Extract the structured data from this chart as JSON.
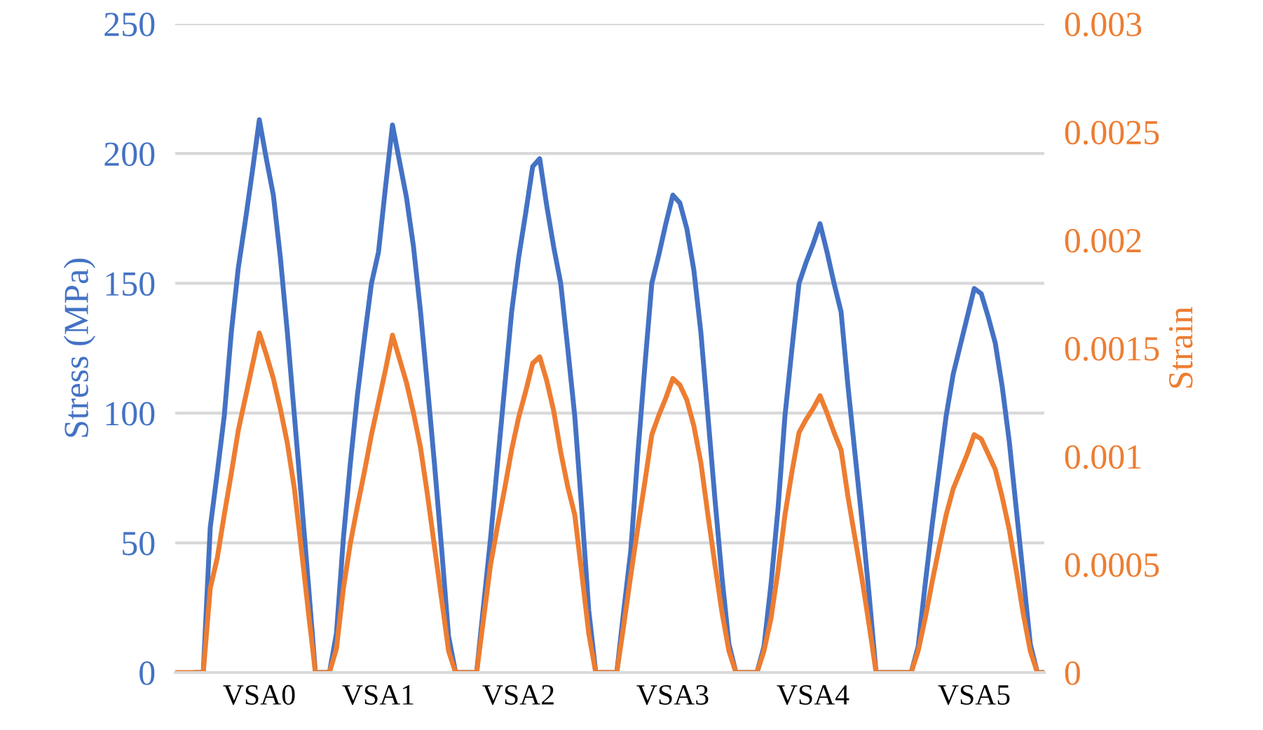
{
  "chart_data": {
    "type": "line",
    "ylabel": "Stress (MPa)",
    "y2label": "Strain",
    "categories": [
      null,
      null,
      null,
      null,
      null,
      null,
      null,
      null,
      null,
      null,
      null,
      null,
      "VSA0",
      null,
      null,
      null,
      null,
      null,
      null,
      null,
      null,
      null,
      null,
      null,
      null,
      null,
      null,
      null,
      null,
      "VSA1",
      null,
      null,
      null,
      null,
      null,
      null,
      null,
      null,
      null,
      null,
      null,
      null,
      null,
      null,
      null,
      null,
      null,
      null,
      null,
      "VSA2",
      null,
      null,
      null,
      null,
      null,
      null,
      null,
      null,
      null,
      null,
      null,
      null,
      null,
      null,
      null,
      null,
      null,
      null,
      null,
      null,
      null,
      "VSA3",
      null,
      null,
      null,
      null,
      null,
      null,
      null,
      null,
      null,
      null,
      null,
      null,
      null,
      null,
      null,
      null,
      null,
      null,
      null,
      "VSA4",
      null,
      null,
      null,
      null,
      null,
      null,
      null,
      null,
      null,
      null,
      null,
      null,
      null,
      null,
      null,
      null,
      null,
      null,
      null,
      null,
      null,
      null,
      "VSA5",
      null,
      null,
      null,
      null,
      null,
      null,
      null,
      null,
      null,
      null
    ],
    "series": [
      {
        "color": "#4472c4",
        "values": [
          null,
          null,
          null,
          0,
          0,
          56,
          77,
          99,
          131,
          156,
          174,
          193,
          213,
          198,
          184,
          160,
          131,
          99,
          67,
          34,
          0,
          0,
          0,
          15,
          52,
          81,
          107,
          129,
          150,
          162,
          187,
          211,
          197,
          183,
          164,
          139,
          110,
          80,
          48,
          14,
          0,
          0,
          0,
          0,
          26,
          52,
          81,
          110,
          139,
          160,
          177,
          195,
          198,
          180,
          164,
          150,
          125,
          99,
          63,
          24,
          0,
          0,
          0,
          0,
          24,
          47,
          84,
          118,
          150,
          161,
          173,
          184,
          181,
          171,
          155,
          131,
          99,
          67,
          37,
          11,
          0,
          0,
          0,
          0,
          10,
          34,
          63,
          99,
          125,
          150,
          158,
          165,
          173,
          162,
          150,
          139,
          110,
          84,
          58,
          30,
          0,
          0,
          0,
          0,
          0,
          0,
          10,
          34,
          57,
          78,
          99,
          115,
          126,
          137,
          148,
          146,
          137,
          127,
          110,
          89,
          63,
          37,
          11,
          0,
          0
        ]
      },
      {
        "color": "#ed7d31",
        "axis": "y2",
        "values": [
          0,
          0,
          0,
          0,
          0,
          0.00039,
          0.00053,
          0.00073,
          0.00092,
          0.00112,
          0.00127,
          0.00142,
          0.00157,
          0.00147,
          0.00136,
          0.00122,
          0.00106,
          0.00085,
          0.00057,
          0.00028,
          0,
          0,
          0,
          0.00011,
          0.00039,
          0.0006,
          0.00077,
          0.00093,
          0.0011,
          0.00125,
          0.0014,
          0.00156,
          0.00145,
          0.00134,
          0.0012,
          0.00104,
          0.00082,
          0.00058,
          0.00034,
          0.0001,
          0,
          0,
          0,
          0,
          0.00025,
          0.0005,
          0.00068,
          0.00085,
          0.00103,
          0.00118,
          0.0013,
          0.00143,
          0.00146,
          0.00135,
          0.00121,
          0.00102,
          0.00086,
          0.00073,
          0.00046,
          0.00018,
          0,
          0,
          0,
          0,
          0.00022,
          0.00045,
          0.00067,
          0.00088,
          0.0011,
          0.00119,
          0.00127,
          0.00136,
          0.00133,
          0.00126,
          0.00114,
          0.00097,
          0.00073,
          0.0005,
          0.00028,
          0.0001,
          0,
          0,
          0,
          0,
          0.0001,
          0.00025,
          0.00047,
          0.00073,
          0.00093,
          0.00111,
          0.00117,
          0.00122,
          0.00128,
          0.0012,
          0.00111,
          0.00103,
          0.00081,
          0.00062,
          0.00043,
          0.00022,
          0,
          0,
          0,
          0,
          0,
          0,
          0.0001,
          0.00025,
          0.00042,
          0.00058,
          0.00073,
          0.00085,
          0.00093,
          0.00101,
          0.0011,
          0.00108,
          0.00101,
          0.00094,
          0.00081,
          0.00066,
          0.00047,
          0.00027,
          0.0001,
          0,
          0
        ]
      }
    ],
    "ylim": [
      0,
      250
    ],
    "yticks": [
      0,
      50,
      100,
      150,
      200,
      250
    ],
    "y2lim": [
      0,
      0.003
    ],
    "y2ticks": [
      0,
      0.0005,
      0.001,
      0.0015,
      0.002,
      0.0025,
      0.003
    ],
    "grid": "y",
    "marker": "none",
    "line_style": "solid"
  }
}
